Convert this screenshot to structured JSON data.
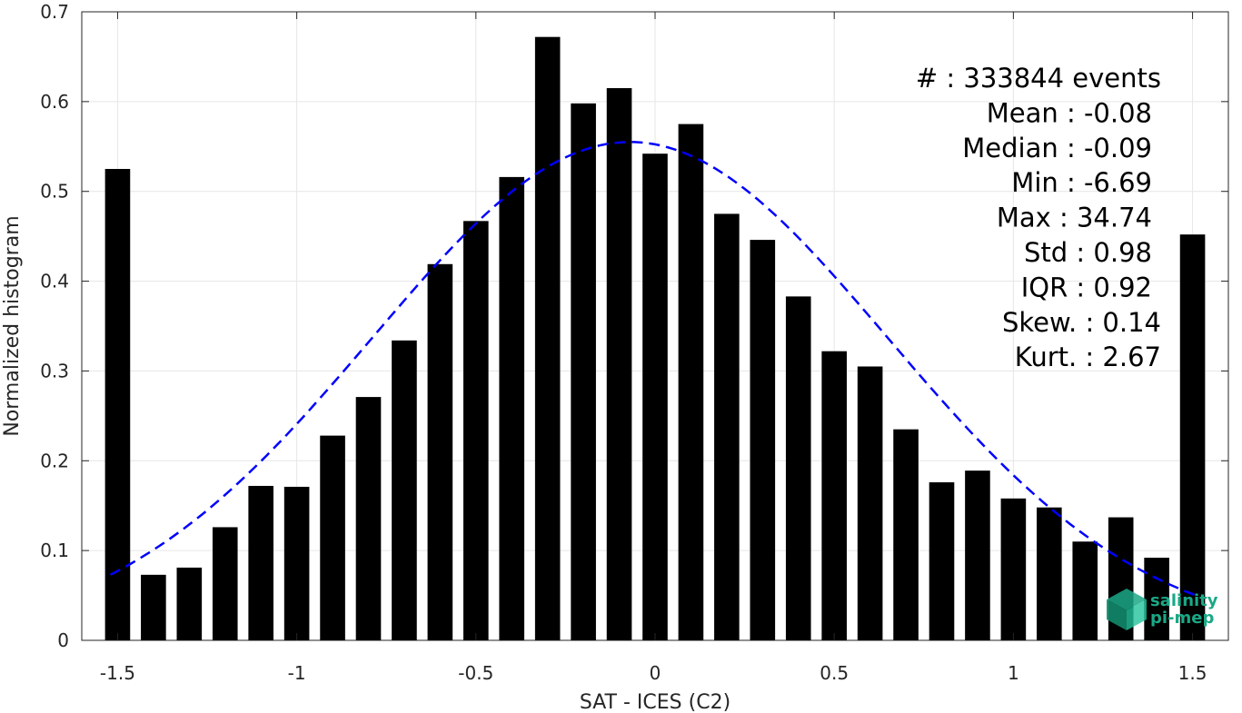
{
  "chart_data": {
    "type": "bar",
    "xlabel": "SAT - ICES (C2)",
    "ylabel": "Normalized histogram",
    "xlim": [
      -1.6,
      1.6
    ],
    "ylim": [
      0,
      0.7
    ],
    "xticks": [
      -1.5,
      -1,
      -0.5,
      0,
      0.5,
      1,
      1.5
    ],
    "xtick_labels": [
      "-1.5",
      "-1",
      "-0.5",
      "0",
      "0.5",
      "1",
      "1.5"
    ],
    "yticks": [
      0,
      0.1,
      0.2,
      0.3,
      0.4,
      0.5,
      0.6,
      0.7
    ],
    "ytick_labels": [
      "0",
      "0.1",
      "0.2",
      "0.3",
      "0.4",
      "0.5",
      "0.6",
      "0.7"
    ],
    "grid": true,
    "bar_color": "#000000",
    "bar_width": 0.07,
    "x": [
      -1.5,
      -1.4,
      -1.3,
      -1.2,
      -1.1,
      -1.0,
      -0.9,
      -0.8,
      -0.7,
      -0.6,
      -0.5,
      -0.4,
      -0.3,
      -0.2,
      -0.1,
      0.0,
      0.1,
      0.2,
      0.3,
      0.4,
      0.5,
      0.6,
      0.7,
      0.8,
      0.9,
      1.0,
      1.1,
      1.2,
      1.3,
      1.4,
      1.5
    ],
    "values": [
      0.525,
      0.073,
      0.081,
      0.126,
      0.172,
      0.171,
      0.228,
      0.271,
      0.334,
      0.419,
      0.467,
      0.516,
      0.672,
      0.598,
      0.615,
      0.542,
      0.575,
      0.475,
      0.446,
      0.383,
      0.322,
      0.305,
      0.235,
      0.176,
      0.189,
      0.158,
      0.148,
      0.11,
      0.137,
      0.092,
      0.452
    ],
    "fit": {
      "type": "gaussian",
      "color": "#0000ff",
      "style": "dashed",
      "x_range": [
        -1.52,
        1.52
      ],
      "mean": -0.07,
      "std": 0.72,
      "peak": 0.555
    },
    "annotations": [
      "#   : 333844 events",
      "Mean : -0.08",
      "Median : -0.09",
      "Min : -6.69",
      "Max : 34.74",
      "Std : 0.98",
      "IQR : 0.92",
      "Skew. : 0.14",
      "Kurt. : 2.67"
    ]
  },
  "logo": {
    "line1": "salinity",
    "line2": "pi-mep",
    "color": "#1aa886"
  }
}
